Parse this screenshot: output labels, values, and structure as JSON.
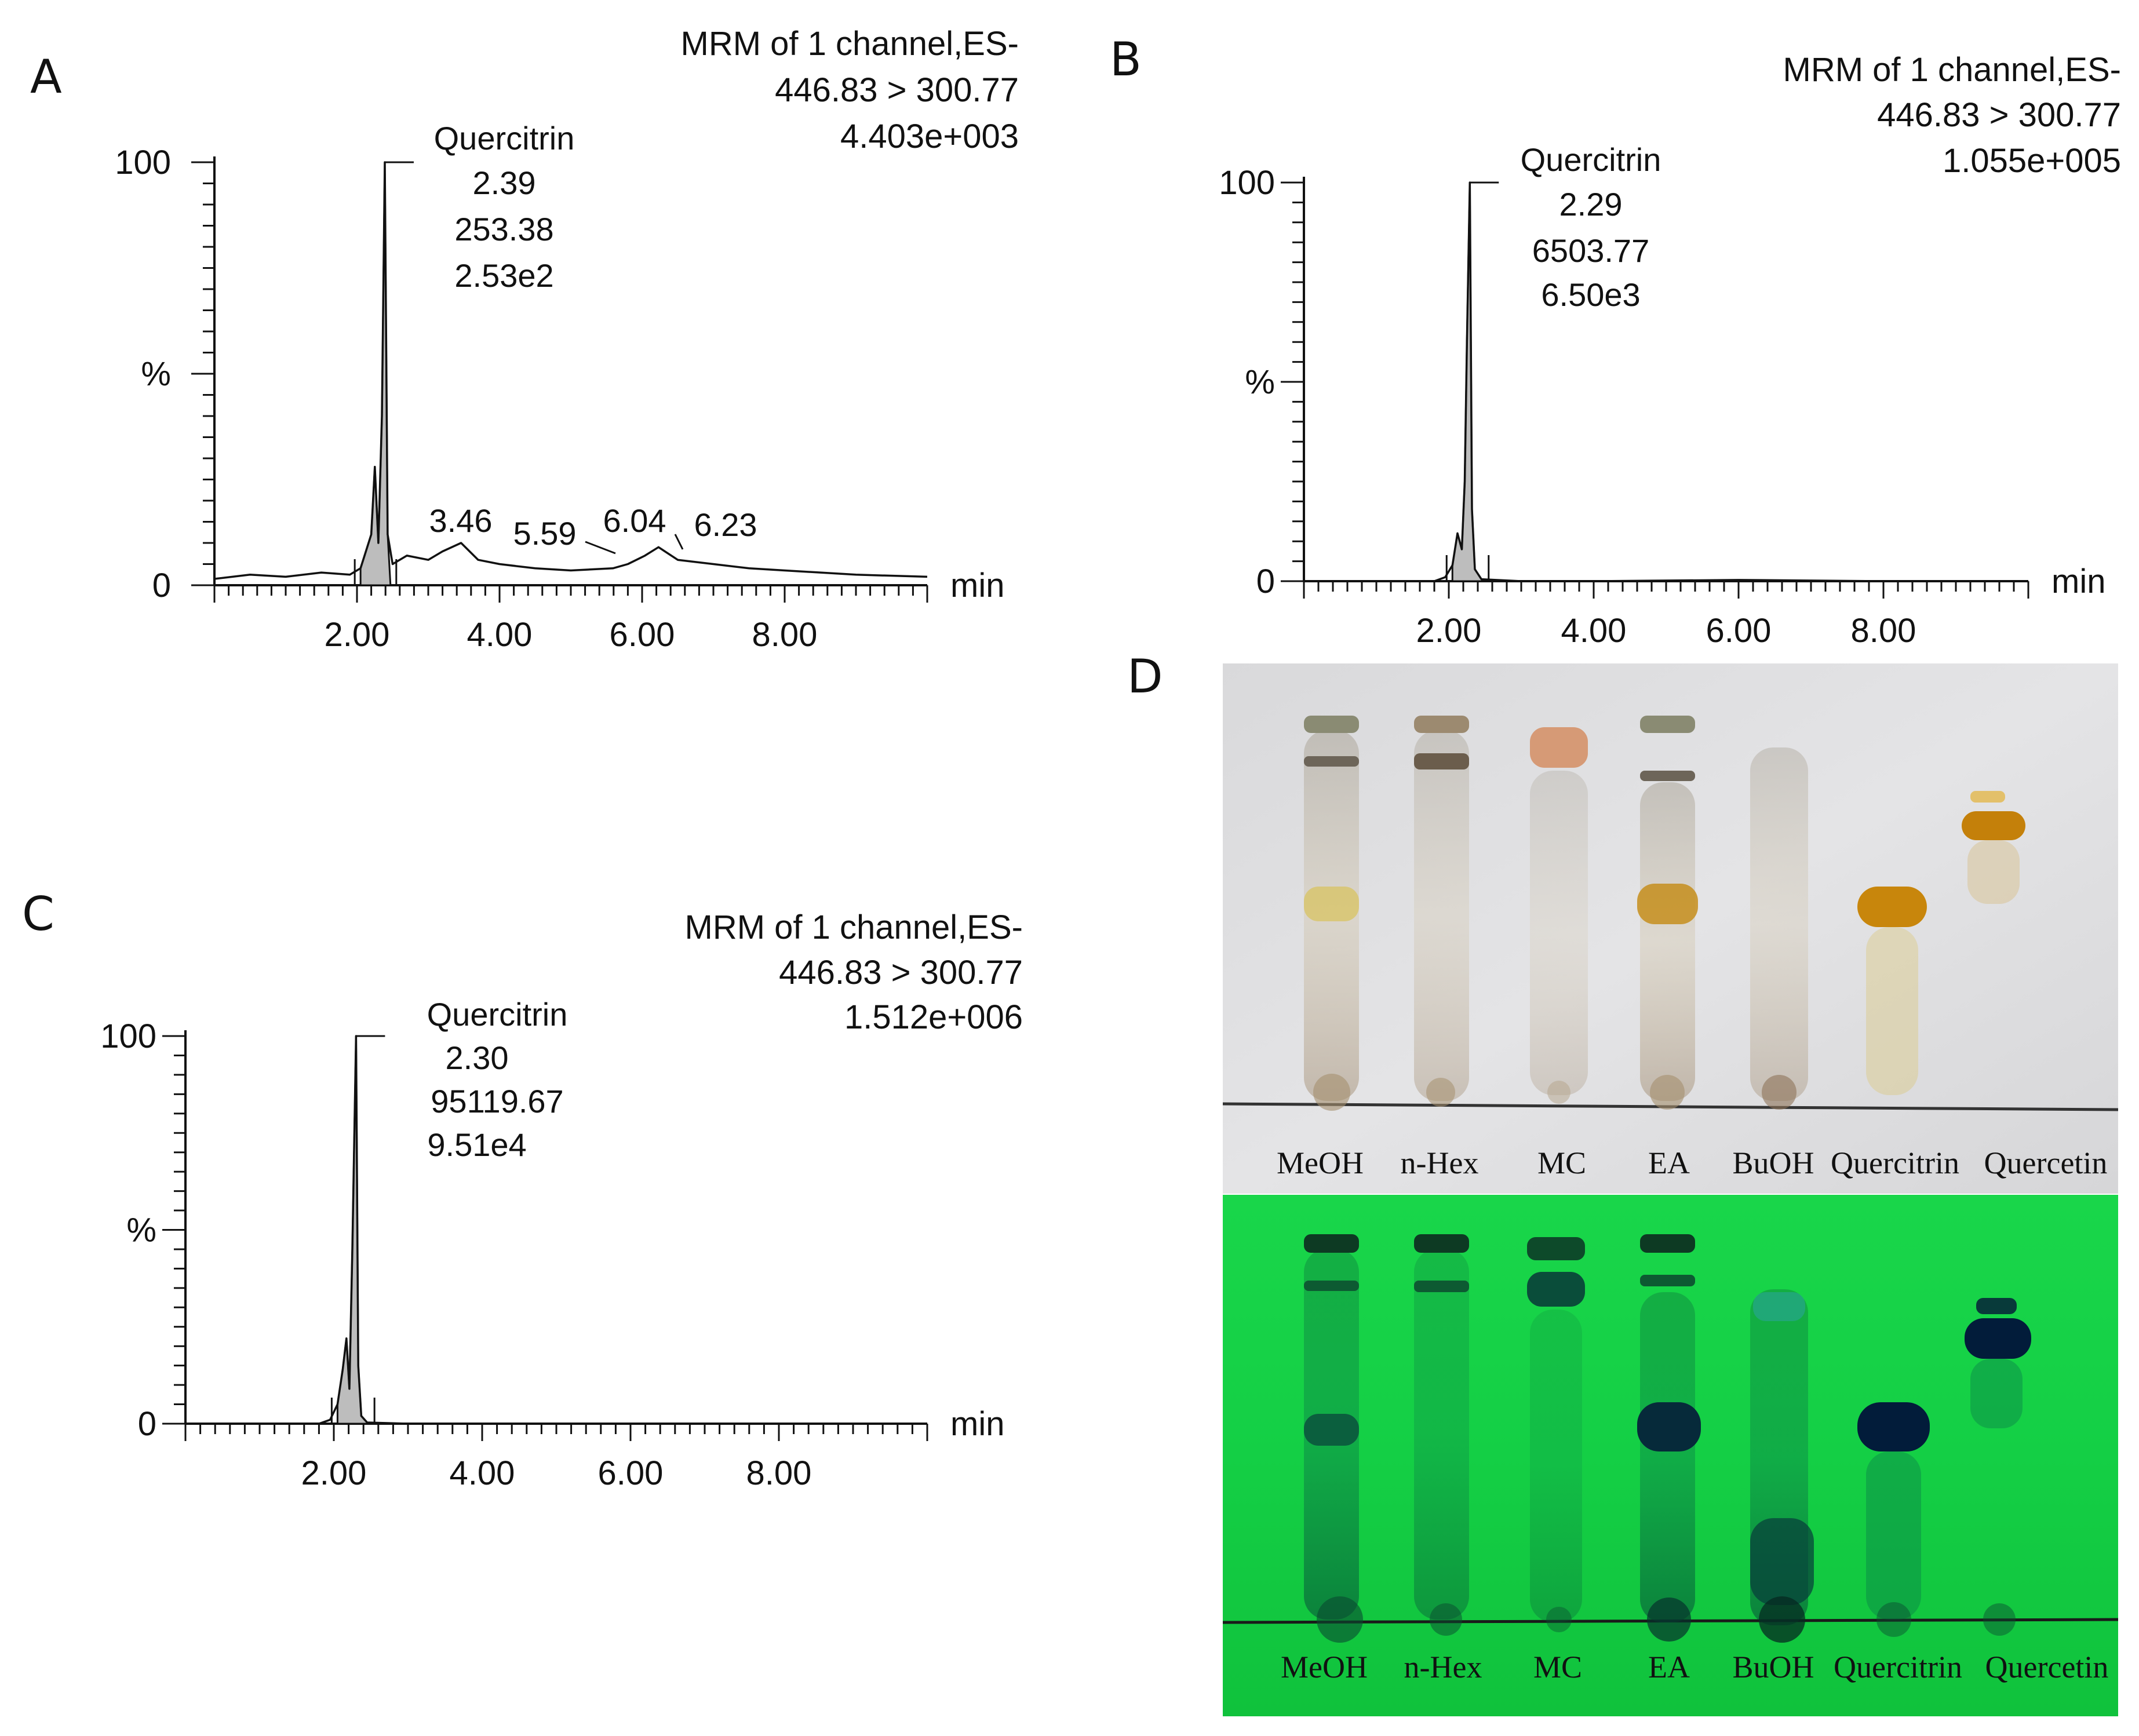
{
  "panels": [
    {
      "id": "A",
      "letter": "A",
      "header": [
        "MRM of 1 channel,ES-",
        "446.83 > 300.77",
        "4.403e+003"
      ],
      "peak_label": [
        "Quercitrin",
        "2.39",
        "253.38",
        "2.53e2"
      ],
      "minor_peaks": [
        "3.46",
        "5.59",
        "6.04",
        "6.23"
      ]
    },
    {
      "id": "B",
      "letter": "B",
      "header": [
        "MRM of 1 channel,ES-",
        "446.83 > 300.77",
        "1.055e+005"
      ],
      "peak_label": [
        "Quercitrin",
        "2.29",
        "6503.77",
        "6.50e3"
      ]
    },
    {
      "id": "C",
      "letter": "C",
      "header": [
        "MRM of 1 channel,ES-",
        "446.83 > 300.77",
        "1.512e+006"
      ],
      "peak_label": [
        "Quercitrin",
        "2.30",
        "95119.67",
        "9.51e4"
      ]
    }
  ],
  "axis_text": {
    "y_top": "100",
    "y_mid": "%",
    "y_bottom": "0",
    "x_unit": "min",
    "x_ticks": [
      "2.00",
      "4.00",
      "6.00",
      "8.00"
    ]
  },
  "tlc": {
    "letter": "D",
    "lanes": [
      "MeOH",
      "n-Hex",
      "MC",
      "EA",
      "BuOH",
      "Quercitrin",
      "Quercetin"
    ]
  },
  "chart_data": [
    {
      "type": "line",
      "panel": "A",
      "xlabel": "min",
      "ylabel": "%",
      "xlim": [
        0,
        10
      ],
      "ylim": [
        0,
        100
      ],
      "x_ticks": [
        2,
        4,
        6,
        8
      ],
      "grid": false,
      "series": [
        {
          "name": "Quercitrin",
          "x": [
            0,
            0.5,
            1.0,
            1.5,
            1.9,
            2.05,
            2.2,
            2.25,
            2.3,
            2.35,
            2.39,
            2.43,
            2.5,
            2.7,
            3.0,
            3.2,
            3.46,
            3.7,
            4.0,
            4.5,
            5.0,
            5.59,
            5.8,
            6.04,
            6.23,
            6.5,
            7.0,
            7.5,
            8.0,
            9.0,
            10.0
          ],
          "y": [
            1.5,
            2.5,
            2.0,
            3.0,
            2.5,
            4.0,
            12,
            28,
            10,
            40,
            100,
            12,
            5,
            7,
            6,
            8,
            10,
            6,
            5,
            4,
            3.5,
            4,
            5,
            7,
            9,
            6,
            5,
            4,
            3.5,
            2.5,
            2.0
          ]
        }
      ],
      "annotations": [
        "Quercitrin 2.39",
        "3.46",
        "5.59",
        "6.04",
        "6.23"
      ]
    },
    {
      "type": "line",
      "panel": "B",
      "xlabel": "min",
      "ylabel": "%",
      "xlim": [
        0,
        10
      ],
      "ylim": [
        0,
        100
      ],
      "x_ticks": [
        2,
        4,
        6,
        8
      ],
      "grid": false,
      "series": [
        {
          "name": "Quercitrin",
          "x": [
            0,
            1.0,
            1.8,
            1.95,
            2.05,
            2.12,
            2.18,
            2.22,
            2.25,
            2.29,
            2.32,
            2.36,
            2.45,
            3.0,
            4.0,
            6.0,
            8.0,
            10.0
          ],
          "y": [
            0,
            0,
            0,
            1,
            4,
            12,
            8,
            25,
            60,
            100,
            18,
            3,
            0.5,
            0,
            0,
            0.3,
            0,
            0
          ]
        }
      ]
    },
    {
      "type": "line",
      "panel": "C",
      "xlabel": "min",
      "ylabel": "%",
      "xlim": [
        0,
        10
      ],
      "ylim": [
        0,
        100
      ],
      "x_ticks": [
        2,
        4,
        6,
        8
      ],
      "grid": false,
      "series": [
        {
          "name": "Quercitrin",
          "x": [
            0,
            1.0,
            1.8,
            1.95,
            2.05,
            2.12,
            2.17,
            2.21,
            2.25,
            2.3,
            2.33,
            2.37,
            2.45,
            3.0,
            10.0
          ],
          "y": [
            0,
            0,
            0,
            1,
            5,
            14,
            22,
            9,
            45,
            100,
            15,
            2,
            0.3,
            0,
            0
          ]
        }
      ]
    }
  ]
}
